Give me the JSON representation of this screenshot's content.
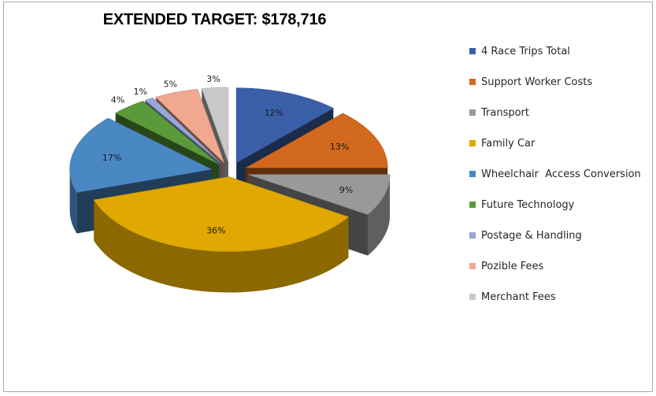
{
  "chart_data": {
    "type": "pie",
    "title": "EXTENDED TARGET: $178,716",
    "series": [
      {
        "name": "4 Race Trips Total",
        "value": 12,
        "label": "12%",
        "color": "#3a5fa8"
      },
      {
        "name": "Support Worker Costs",
        "value": 13,
        "label": "13%",
        "color": "#d2691e"
      },
      {
        "name": "Transport",
        "value": 9,
        "label": "9%",
        "color": "#999999"
      },
      {
        "name": "Family Car",
        "value": 36,
        "label": "36%",
        "color": "#e0a800"
      },
      {
        "name": "Wheelchair  Access Conversion",
        "value": 17,
        "label": "17%",
        "color": "#4a88c4"
      },
      {
        "name": "Future Technology",
        "value": 4,
        "label": "4%",
        "color": "#5a9a3a"
      },
      {
        "name": "Postage & Handling",
        "value": 1,
        "label": "1%",
        "color": "#97a8d8"
      },
      {
        "name": "Pozible Fees",
        "value": 5,
        "label": "5%",
        "color": "#f0a890"
      },
      {
        "name": "Merchant Fees",
        "value": 3,
        "label": "3%",
        "color": "#c8c8c8"
      }
    ],
    "legend": "right",
    "style": "3d-exploded"
  }
}
